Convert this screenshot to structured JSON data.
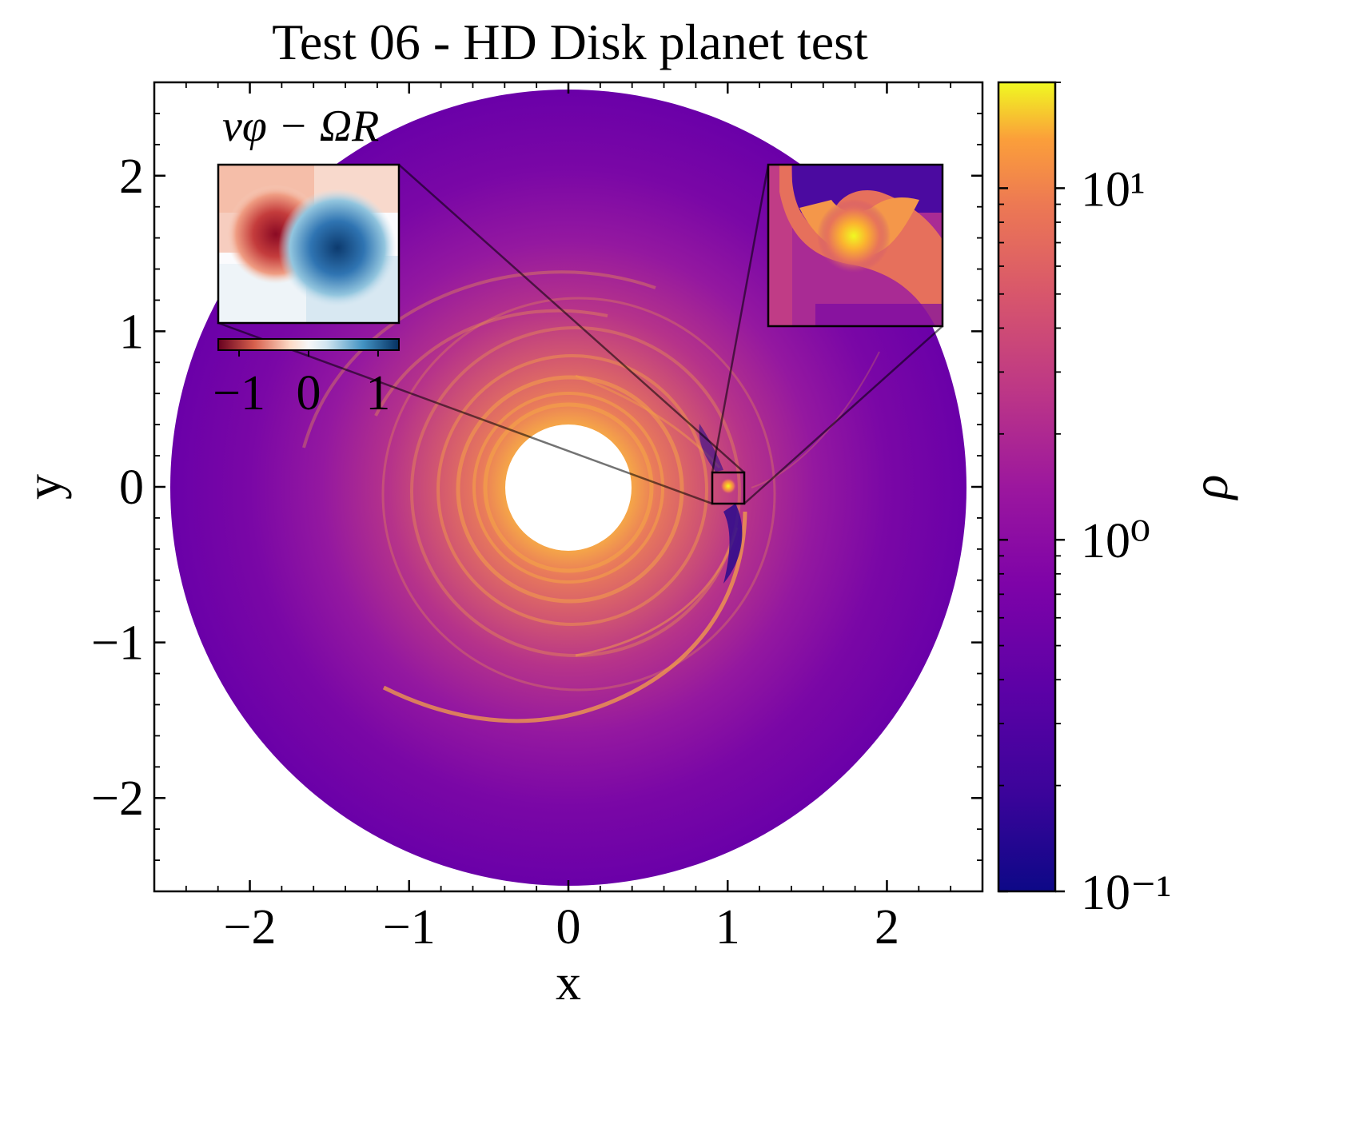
{
  "chart_data": {
    "type": "heatmap",
    "title": "Test 06 - HD Disk planet test",
    "xlabel": "x",
    "ylabel": "y",
    "xlim": [
      -2.6,
      2.6
    ],
    "ylim": [
      -2.6,
      2.6
    ],
    "x_ticks": [
      -2,
      -1,
      0,
      1,
      2
    ],
    "x_tick_labels": [
      "−2",
      "−1",
      "0",
      "1",
      "2"
    ],
    "y_ticks": [
      2,
      1,
      0,
      -1,
      -2
    ],
    "y_tick_labels": [
      "2",
      "1",
      "0",
      "−1",
      "−2"
    ],
    "disk": {
      "inner_radius": 0.4,
      "outer_radius": 2.5,
      "planet_position": [
        1.0,
        0.0
      ]
    },
    "zoom_box": {
      "x_range": [
        0.9,
        1.1
      ],
      "y_range": [
        -0.1,
        0.1
      ]
    },
    "colorbar": {
      "label": "ρ",
      "scale": "log",
      "colormap": "plasma",
      "range": [
        0.1,
        20
      ],
      "tick_values": [
        0.1,
        1,
        10
      ],
      "tick_labels": [
        "10⁻¹",
        "10⁰",
        "10¹"
      ]
    },
    "inset_velocity": {
      "label": "vφ − ΩR",
      "colormap": "RdBu",
      "range": [
        -1.3,
        1.3
      ],
      "tick_values": [
        -1,
        0,
        1
      ],
      "tick_labels": [
        "−1",
        "0",
        "1"
      ]
    },
    "inset_density": {
      "colormap": "plasma"
    }
  },
  "colors": {
    "plasma_low": "#0d0887",
    "plasma_purple": "#6a00a8",
    "plasma_mid": "#b12a90",
    "plasma_orange": "#e16462",
    "plasma_gold": "#fca636",
    "plasma_high": "#f0f921",
    "rdbu_red": "#67001f",
    "rdbu_blue": "#053061"
  }
}
